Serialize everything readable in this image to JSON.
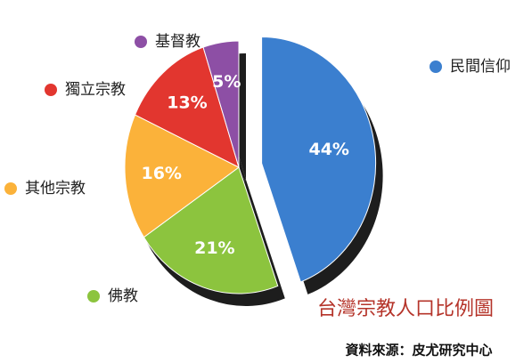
{
  "chart_data": {
    "type": "pie",
    "title": "台灣宗教人口比例圖",
    "source": "資料來源：皮尤研究中心",
    "categories": [
      "民間信仰",
      "佛教",
      "其他宗教",
      "獨立宗教",
      "基督教"
    ],
    "values": [
      44,
      21,
      16,
      13,
      5
    ],
    "value_labels": [
      "44%",
      "21%",
      "16%",
      "13%",
      "5%"
    ],
    "colors": [
      "#3b7fcf",
      "#8cc43e",
      "#fbb23a",
      "#e2362f",
      "#8d4fa5"
    ]
  }
}
